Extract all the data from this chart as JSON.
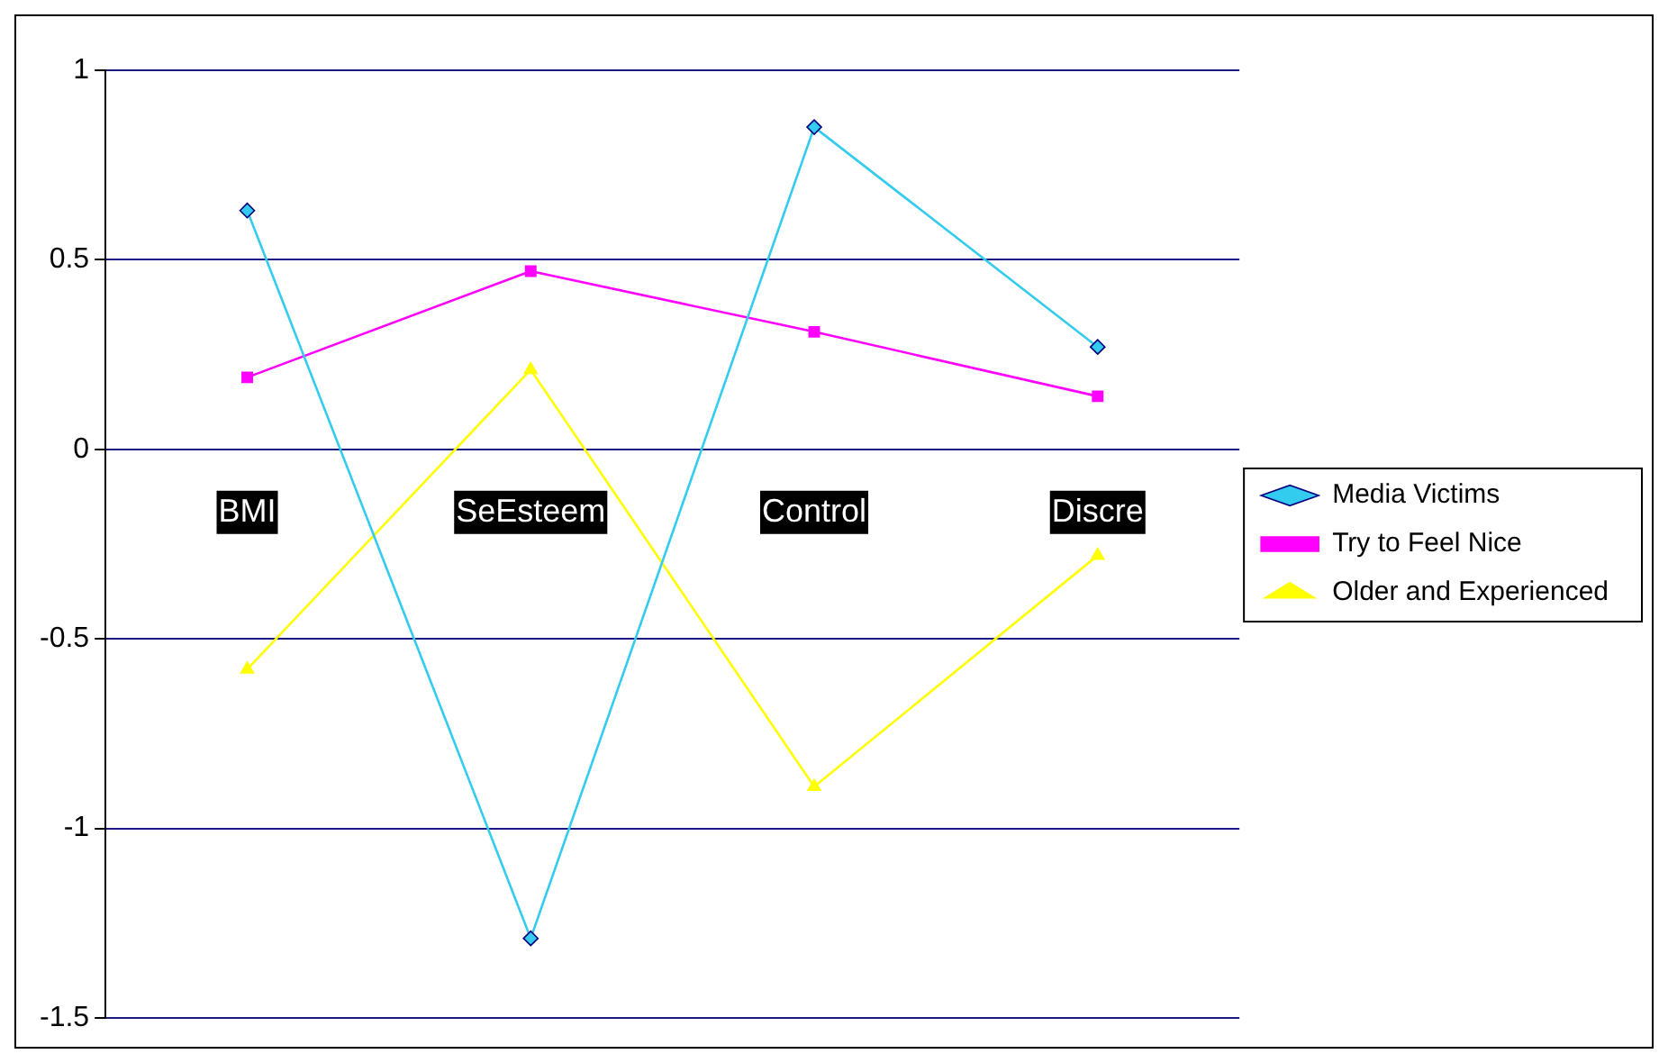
{
  "chart_data": {
    "type": "line",
    "categories": [
      "BMI",
      "SeEsteem",
      "Control",
      "Discre"
    ],
    "series": [
      {
        "name": "Media Victims",
        "color": "#33ccee",
        "marker": "diamond",
        "values": [
          0.63,
          -1.29,
          0.85,
          0.27
        ]
      },
      {
        "name": "Try to Feel Nice",
        "color": "#ff00ff",
        "marker": "square",
        "values": [
          0.19,
          0.47,
          0.31,
          0.14
        ]
      },
      {
        "name": "Older and Experienced",
        "color": "#ffff00",
        "marker": "triangle",
        "values": [
          -0.58,
          0.21,
          -0.89,
          -0.28
        ]
      }
    ],
    "ylim": [
      -1.5,
      1
    ],
    "yticks": [
      -1.5,
      -1,
      -0.5,
      0,
      0.5,
      1
    ],
    "grid": "y",
    "legend": "right"
  }
}
